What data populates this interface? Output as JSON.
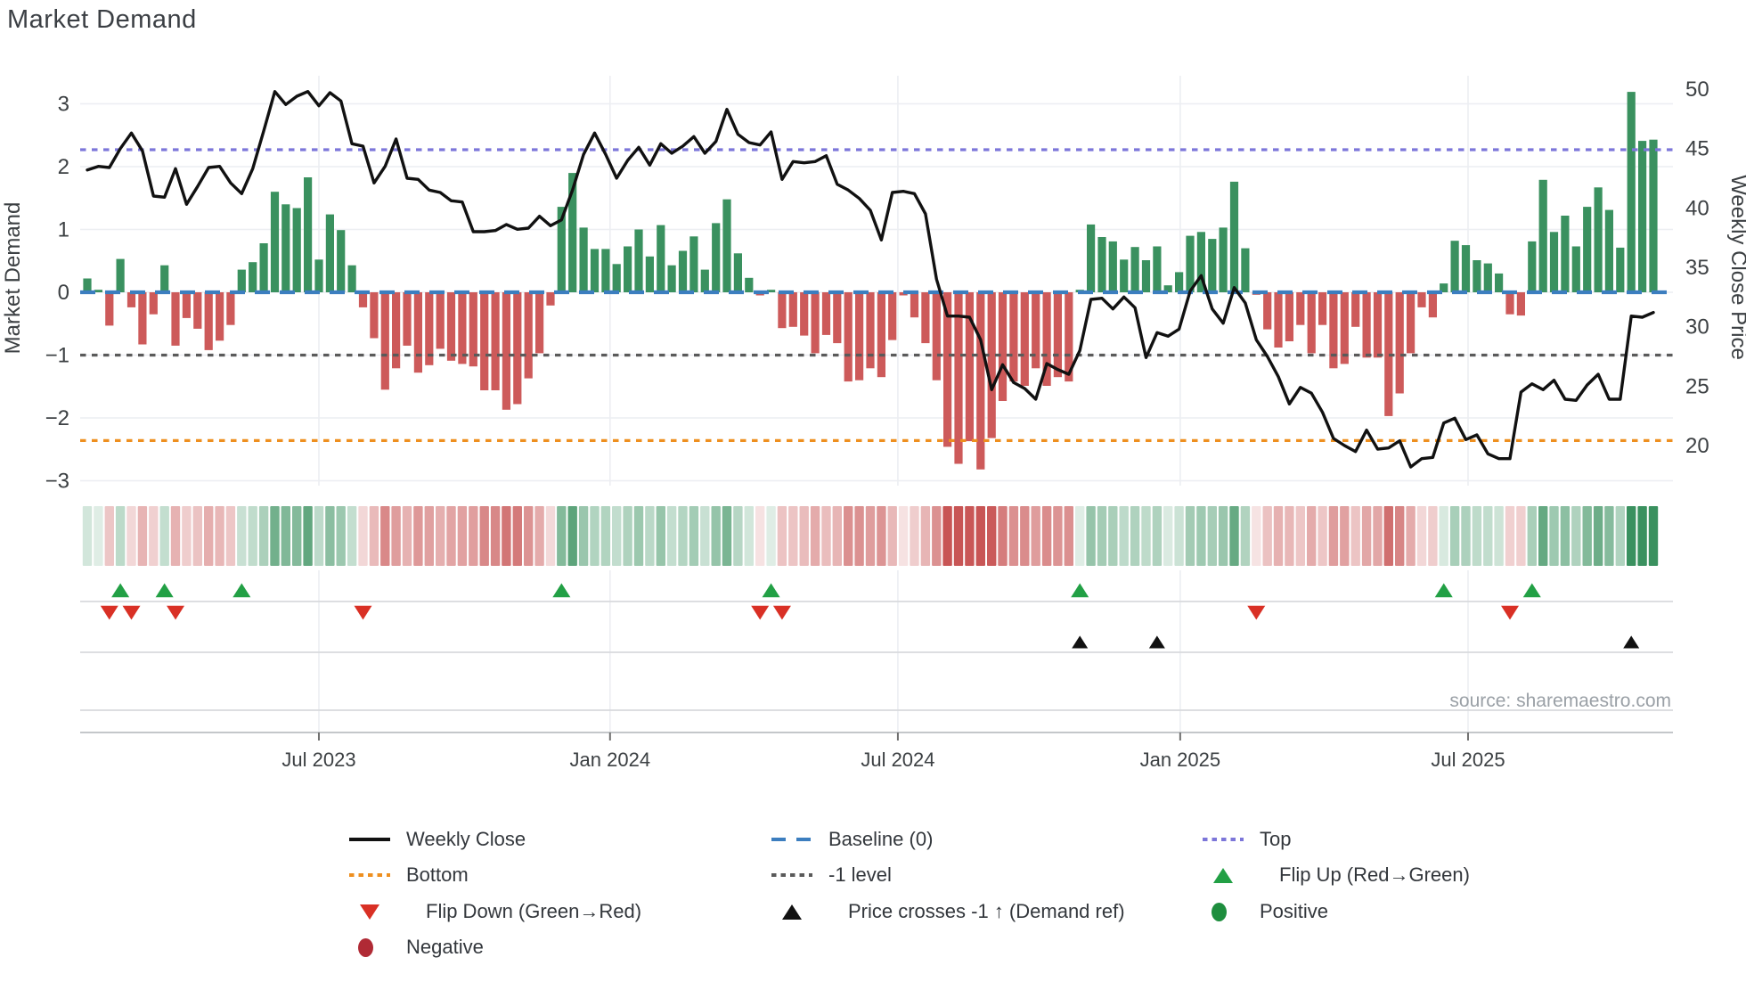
{
  "title": "Market Demand",
  "source": "source: sharemaestro.com",
  "left_axis": {
    "label": "Market Demand",
    "ticks": [
      3,
      2,
      1,
      0,
      -1,
      -2,
      -3
    ]
  },
  "right_axis": {
    "label": "Weekly Close Price",
    "ticks": [
      50,
      45,
      40,
      35,
      30,
      25,
      20
    ]
  },
  "x_axis": {
    "ticks": [
      "Jul 2023",
      "Jan 2024",
      "Jul 2024",
      "Jan 2025",
      "Jul 2025"
    ],
    "tick_weeks": [
      21.0,
      47.4,
      73.5,
      99.1,
      125.2
    ]
  },
  "colors": {
    "bar_positive": "#3a915f",
    "bar_negative": "#cd5a5a",
    "baseline": "#3c7ebf",
    "top_line": "#7c76d9",
    "bottom_line": "#ee8f1f",
    "minus_one_line": "#5a5a5a",
    "price_line": "#111111",
    "flip_up": "#22a045",
    "flip_down": "#d93025",
    "price_cross": "#111111",
    "positive_dot": "#1e8e3e",
    "negative_dot": "#b02a35",
    "grid": "#eceef2",
    "band_line": "#d8dadd",
    "axis_line": "#c4c7ca",
    "tick_text": "#3c4043",
    "source_text": "#9aa0a6"
  },
  "legend": [
    {
      "label": "Weekly Close",
      "swatch": "line-solid",
      "color": "#111111",
      "col": 0,
      "row": 0
    },
    {
      "label": "Baseline (0)",
      "swatch": "line-dashed",
      "color": "#3c7ebf",
      "col": 1,
      "row": 0
    },
    {
      "label": "Top",
      "swatch": "line-dotted",
      "color": "#7c76d9",
      "col": 2,
      "row": 0
    },
    {
      "label": "Bottom",
      "swatch": "line-dotted",
      "color": "#ee8f1f",
      "col": 0,
      "row": 1
    },
    {
      "label": "-1 level",
      "swatch": "line-dotted",
      "color": "#5a5a5a",
      "col": 1,
      "row": 1
    },
    {
      "label": "Flip Up (Red→Green)",
      "swatch": "triangle-up",
      "color": "#22a045",
      "col": 2,
      "row": 1
    },
    {
      "label": "Flip Down (Green→Red)",
      "swatch": "triangle-down",
      "color": "#d93025",
      "col": 0,
      "row": 2
    },
    {
      "label": "Price crosses -1 ↑ (Demand ref)",
      "swatch": "triangle-up",
      "color": "#111111",
      "col": 1,
      "row": 2
    },
    {
      "label": "Positive",
      "swatch": "circle",
      "color": "#1e8e3e",
      "col": 2,
      "row": 2
    },
    {
      "label": "Negative",
      "swatch": "circle",
      "color": "#b02a35",
      "col": 0,
      "row": 3
    }
  ],
  "chart_data": {
    "type": "line+bar",
    "title": "Market Demand",
    "ylabel_left": "Market Demand",
    "ylabel_right": "Weekly Close Price",
    "demand_ylim": [
      -3,
      3
    ],
    "price_ylim": [
      20,
      50
    ],
    "levels": {
      "baseline": 0,
      "top": 2.27,
      "bottom": -2.36,
      "minus_one": -1
    },
    "flip_up_weeks": [
      3,
      7,
      14,
      43,
      62,
      90,
      123,
      131
    ],
    "flip_down_weeks": [
      2,
      4,
      8,
      25,
      61,
      63,
      106,
      129
    ],
    "price_cross_weeks": [
      90,
      97,
      140
    ],
    "demand": [
      0.22,
      0.04,
      -0.53,
      0.53,
      -0.24,
      -0.83,
      -0.35,
      0.43,
      -0.85,
      -0.41,
      -0.58,
      -0.92,
      -0.77,
      -0.52,
      0.36,
      0.48,
      0.78,
      1.6,
      1.4,
      1.34,
      1.83,
      0.52,
      1.24,
      0.99,
      0.43,
      -0.24,
      -0.73,
      -1.55,
      -1.21,
      -0.85,
      -1.28,
      -1.16,
      -0.9,
      -1.09,
      -1.14,
      -1.18,
      -1.56,
      -1.56,
      -1.87,
      -1.78,
      -1.37,
      -0.97,
      -0.21,
      1.36,
      1.9,
      1.03,
      0.69,
      0.69,
      0.45,
      0.73,
      1.0,
      0.57,
      1.07,
      0.43,
      0.66,
      0.89,
      0.36,
      1.1,
      1.48,
      0.62,
      0.23,
      -0.05,
      0.04,
      -0.57,
      -0.55,
      -0.69,
      -0.97,
      -0.68,
      -0.81,
      -1.42,
      -1.4,
      -1.21,
      -1.35,
      -0.76,
      -0.05,
      -0.4,
      -0.81,
      -1.4,
      -2.46,
      -2.73,
      -2.37,
      -2.82,
      -2.32,
      -1.73,
      -1.42,
      -1.49,
      -1.21,
      -1.49,
      -1.35,
      -1.42,
      0.04,
      1.08,
      0.88,
      0.81,
      0.52,
      0.72,
      0.51,
      0.73,
      0.11,
      0.32,
      0.9,
      0.96,
      0.85,
      1.03,
      1.76,
      0.7,
      -0.04,
      -0.59,
      -0.88,
      -0.78,
      -0.52,
      -0.97,
      -0.52,
      -1.21,
      -1.14,
      -0.55,
      -1.04,
      -1.04,
      -1.97,
      -1.61,
      -0.97,
      -0.24,
      -0.4,
      0.14,
      0.82,
      0.75,
      0.51,
      0.46,
      0.3,
      -0.35,
      -0.37,
      0.81,
      1.79,
      0.96,
      1.22,
      0.73,
      1.36,
      1.67,
      1.31,
      0.71,
      3.19,
      2.41,
      2.43
    ],
    "price": [
      43.2,
      43.5,
      43.4,
      45.0,
      46.3,
      44.8,
      41.0,
      40.9,
      43.3,
      40.3,
      41.8,
      43.4,
      43.5,
      42.1,
      41.2,
      43.3,
      46.5,
      49.8,
      48.7,
      49.4,
      49.8,
      48.6,
      49.7,
      49.0,
      45.4,
      45.2,
      42.1,
      43.5,
      45.8,
      42.5,
      42.4,
      41.5,
      41.3,
      40.6,
      40.5,
      38.0,
      38.0,
      38.1,
      38.6,
      38.2,
      38.3,
      39.3,
      38.5,
      39.0,
      41.5,
      44.5,
      46.3,
      44.5,
      42.5,
      44.0,
      45.1,
      43.6,
      45.4,
      44.6,
      45.2,
      46.0,
      44.6,
      45.6,
      48.3,
      46.2,
      45.5,
      45.3,
      46.4,
      42.4,
      43.9,
      43.8,
      43.9,
      44.4,
      42.0,
      41.5,
      40.8,
      39.8,
      37.3,
      41.3,
      41.4,
      41.2,
      39.5,
      34.0,
      30.9,
      30.9,
      30.8,
      28.9,
      24.7,
      26.8,
      25.3,
      24.8,
      23.9,
      26.9,
      26.4,
      26.0,
      28.0,
      32.3,
      32.4,
      31.5,
      32.5,
      31.6,
      27.4,
      29.5,
      29.2,
      29.8,
      33.0,
      34.3,
      31.5,
      30.3,
      33.3,
      32.0,
      28.9,
      27.5,
      25.8,
      23.5,
      24.9,
      24.4,
      22.8,
      20.6,
      20.0,
      19.5,
      21.3,
      19.7,
      19.8,
      20.4,
      18.2,
      18.9,
      19.0,
      21.9,
      22.3,
      20.5,
      20.9,
      19.3,
      18.9,
      18.9,
      24.5,
      25.2,
      24.7,
      25.5,
      23.9,
      23.8,
      25.1,
      26.0,
      23.9,
      23.9,
      30.9,
      30.8,
      31.2
    ]
  }
}
